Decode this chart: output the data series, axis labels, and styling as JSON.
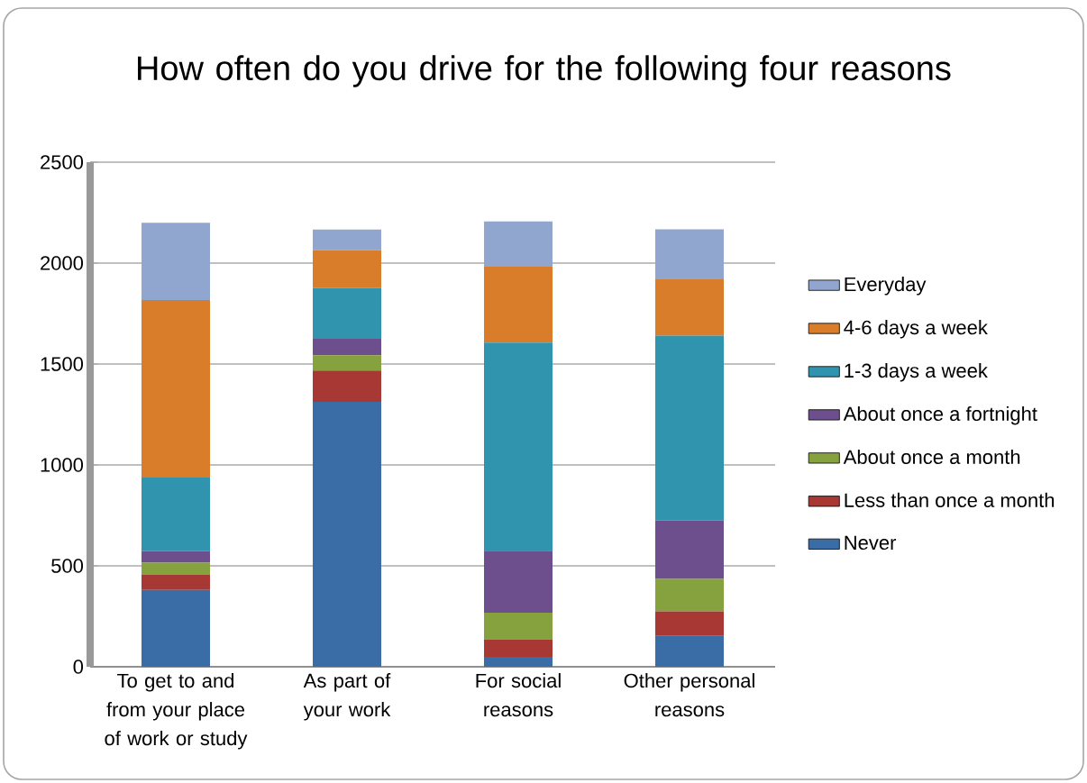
{
  "chart_data": {
    "type": "bar",
    "stacked": true,
    "title": "How often do you drive for the following four reasons",
    "categories": [
      "To get to and from your place of work or study",
      "As part of your work",
      "For social reasons",
      "Other personal reasons"
    ],
    "series": [
      {
        "name": "Never",
        "color": "#3a6ca6",
        "values": [
          381,
          1312,
          49,
          153
        ]
      },
      {
        "name": "Less than once a month",
        "color": "#a83834",
        "values": [
          77,
          156,
          87,
          121
        ]
      },
      {
        "name": "About once a month",
        "color": "#86a23f",
        "values": [
          58,
          76,
          132,
          161
        ]
      },
      {
        "name": "About once a fortnight",
        "color": "#6c4f8c",
        "values": [
          57,
          81,
          307,
          289
        ]
      },
      {
        "name": "1-3 days a week",
        "color": "#3194ae",
        "values": [
          364,
          252,
          1031,
          917
        ]
      },
      {
        "name": "4-6 days a week",
        "color": "#da7d2a",
        "values": [
          880,
          188,
          376,
          279
        ]
      },
      {
        "name": "Everyday",
        "color": "#91a6cf",
        "values": [
          383,
          101,
          224,
          247
        ]
      }
    ],
    "ylim": [
      0,
      2500
    ],
    "yticks": [
      0,
      500,
      1000,
      1500,
      2000,
      2500
    ],
    "grid": "y",
    "legend": "right"
  }
}
